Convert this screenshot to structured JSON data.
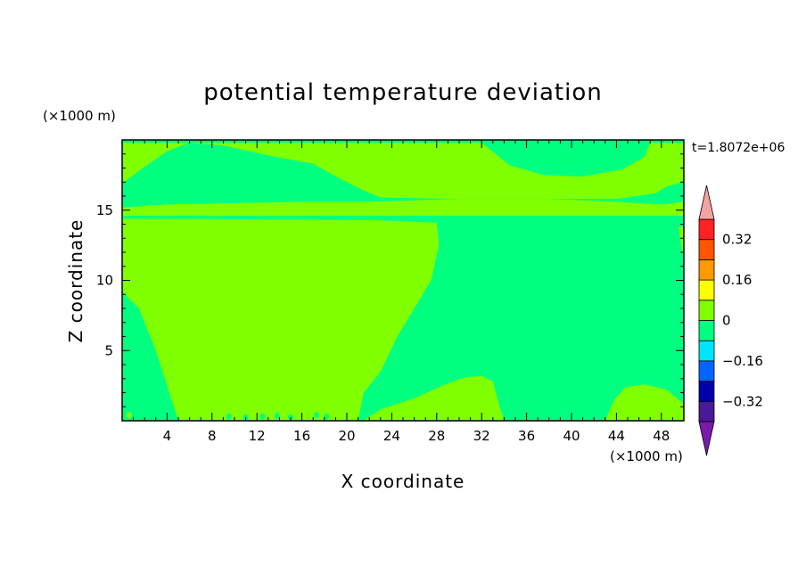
{
  "chart_data": {
    "type": "heatmap",
    "title": "potential temperature deviation",
    "xlabel": "X coordinate",
    "ylabel": "Z coordinate",
    "x_unit": "(×1000 m)",
    "y_unit": "(×1000 m)",
    "time_label": "t=1.8072e+06",
    "xlim": [
      0,
      50
    ],
    "ylim": [
      0,
      20
    ],
    "x_ticks": [
      4,
      8,
      12,
      16,
      20,
      24,
      28,
      32,
      36,
      40,
      44,
      48
    ],
    "x_tick_labels": [
      "4",
      "8",
      "12",
      "16",
      "20",
      "24",
      "28",
      "32",
      "36",
      "40",
      "44",
      "48"
    ],
    "y_ticks": [
      5,
      10,
      15
    ],
    "y_tick_labels": [
      "5",
      "10",
      "15"
    ],
    "x_minor_step": 1,
    "y_minor_step": 1,
    "colorbar": {
      "levels": [
        -0.4,
        -0.32,
        -0.24,
        -0.16,
        -0.08,
        0,
        0.08,
        0.16,
        0.24,
        0.32,
        0.4
      ],
      "colors": [
        "#4a1a96",
        "#0000aa",
        "#0066ff",
        "#00e5ff",
        "#00ff80",
        "#80ff00",
        "#ffff00",
        "#ff9900",
        "#ff5500",
        "#ff2222"
      ],
      "under_color": "#7a1aaa",
      "over_color": "#f4a3a3",
      "tick_values": [
        0.32,
        0.16,
        0,
        -0.16,
        -0.32
      ],
      "tick_labels": [
        "0.32",
        "0.16",
        "0",
        "−0.16",
        "−0.32"
      ]
    },
    "regions": [
      {
        "level": "0 to 0.08",
        "color": "#80ff00",
        "polygon": [
          [
            0,
            14.4
          ],
          [
            22,
            14.3
          ],
          [
            28,
            14.1
          ],
          [
            28.2,
            12.5
          ],
          [
            27.5,
            10
          ],
          [
            26,
            8
          ],
          [
            24.5,
            6
          ],
          [
            23,
            3.5
          ],
          [
            21.5,
            2
          ],
          [
            21,
            0
          ],
          [
            5,
            0
          ],
          [
            4.2,
            2
          ],
          [
            3,
            5
          ],
          [
            1.5,
            8
          ],
          [
            0,
            9.2
          ]
        ]
      },
      {
        "level": "0 to 0.08",
        "color": "#80ff00",
        "polygon": [
          [
            0,
            14.6
          ],
          [
            50,
            14.6
          ],
          [
            50,
            15.6
          ],
          [
            48,
            15.4
          ],
          [
            44,
            15.6
          ],
          [
            38,
            15.8
          ],
          [
            30,
            15.8
          ],
          [
            22,
            15.6
          ],
          [
            16,
            15.6
          ],
          [
            10,
            15.5
          ],
          [
            4,
            15.4
          ],
          [
            0,
            15.2
          ]
        ]
      },
      {
        "level": "0 to 0.08",
        "color": "#80ff00",
        "polygon": [
          [
            0,
            16.9
          ],
          [
            1.5,
            17.8
          ],
          [
            4,
            19.2
          ],
          [
            6,
            19.8
          ],
          [
            0,
            19.8
          ]
        ]
      },
      {
        "level": "0 to 0.08",
        "color": "#80ff00",
        "polygon": [
          [
            6,
            19.8
          ],
          [
            9,
            19.6
          ],
          [
            13,
            18.9
          ],
          [
            17,
            18.3
          ],
          [
            19.5,
            17.2
          ],
          [
            21.5,
            16.4
          ],
          [
            23,
            15.9
          ],
          [
            30,
            15.8
          ],
          [
            38,
            15.8
          ],
          [
            44,
            15.8
          ],
          [
            47.5,
            16.2
          ],
          [
            48.5,
            16.7
          ],
          [
            50,
            17
          ],
          [
            50,
            19.8
          ],
          [
            47,
            19.8
          ],
          [
            46.5,
            18.8
          ],
          [
            44.5,
            17.9
          ],
          [
            41,
            17.4
          ],
          [
            37.5,
            17.5
          ],
          [
            34.5,
            18.2
          ],
          [
            32,
            19.8
          ]
        ]
      },
      {
        "level": "0 to 0.08",
        "color": "#80ff00",
        "polygon": [
          [
            21.5,
            0
          ],
          [
            34,
            0
          ],
          [
            33.6,
            1
          ],
          [
            33,
            2.8
          ],
          [
            32,
            3.2
          ],
          [
            30.5,
            3.1
          ],
          [
            28.5,
            2.5
          ],
          [
            26,
            1.6
          ],
          [
            23,
            0.8
          ],
          [
            21.8,
            0.2
          ]
        ]
      },
      {
        "level": "0 to 0.08",
        "color": "#80ff00",
        "polygon": [
          [
            43,
            0
          ],
          [
            50,
            0
          ],
          [
            50,
            1.2
          ],
          [
            48.5,
            2.2
          ],
          [
            46.5,
            2.6
          ],
          [
            44.8,
            2.4
          ],
          [
            43.8,
            1.5
          ]
        ]
      },
      {
        "level": "0 to 0.08",
        "color": "#80ff00",
        "polygon": [
          [
            49.5,
            13.8
          ],
          [
            50,
            13.8
          ],
          [
            50,
            11.5
          ]
        ]
      }
    ]
  }
}
